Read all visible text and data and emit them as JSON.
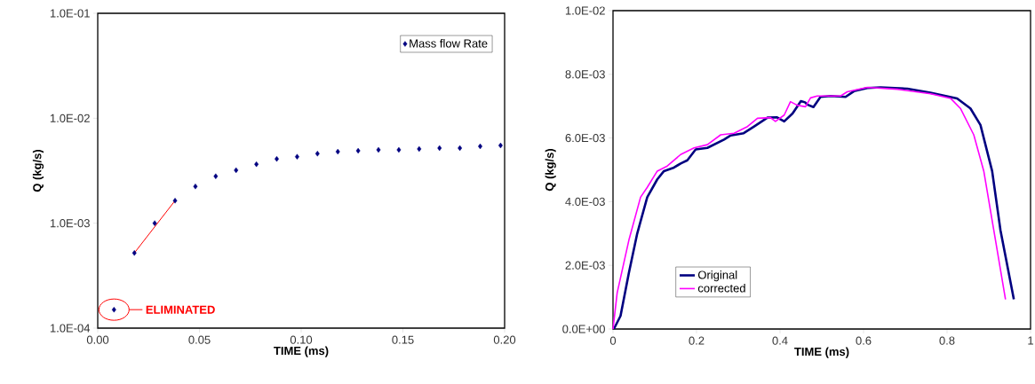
{
  "chart_data": [
    {
      "type": "scatter",
      "xlabel": "TIME (ms)",
      "ylabel": "Q (kg/s)",
      "log": "y",
      "marker": "diamond",
      "legend": "top right",
      "xlim": [
        0,
        0.2
      ],
      "ylim": [
        0.0001,
        0.1
      ],
      "xticks": [
        {
          "value": 0,
          "label": "0.00"
        },
        {
          "value": 0.05,
          "label": "0.05"
        },
        {
          "value": 0.1,
          "label": "0.10"
        },
        {
          "value": 0.15,
          "label": "0.15"
        },
        {
          "value": 0.2,
          "label": "0.20"
        }
      ],
      "yticks": [
        {
          "value": 0.0001,
          "label": "1.0E-04"
        },
        {
          "value": 0.001,
          "label": "1.0E-03"
        },
        {
          "value": 0.01,
          "label": "1.0E-02"
        },
        {
          "value": 0.1,
          "label": "1.0E-01"
        }
      ],
      "x": [
        0.008,
        0.018,
        0.028,
        0.038,
        0.048,
        0.058,
        0.068,
        0.078,
        0.088,
        0.098,
        0.108,
        0.118,
        0.128,
        0.138,
        0.148,
        0.158,
        0.168,
        0.178,
        0.188,
        0.198
      ],
      "series": [
        {
          "name": "Mass flow Rate",
          "color": "#000080",
          "values": [
            0.00015,
            0.00052,
            0.001,
            0.00164,
            0.00224,
            0.0028,
            0.0032,
            0.00365,
            0.0041,
            0.0043,
            0.0046,
            0.0048,
            0.0049,
            0.005,
            0.005,
            0.0051,
            0.0052,
            0.0052,
            0.0054,
            0.0055
          ]
        },
        {
          "type": "line",
          "marker": "none",
          "color": "#ff0000",
          "x": [
            0.018,
            0.038
          ],
          "values": [
            0.00052,
            0.00164
          ]
        }
      ],
      "annotations": [
        {
          "text": "ELIMINATED",
          "x": 0.008,
          "y": 0.00015
        }
      ]
    },
    {
      "type": "line",
      "xlabel": "TIME (ms)",
      "ylabel": "Q (kg/s)",
      "legend": "bottom left",
      "line_style": "solid",
      "xlim": [
        0,
        1
      ],
      "ylim": [
        0,
        0.01
      ],
      "xticks": [
        0,
        0.2,
        0.4,
        0.6,
        0.8,
        1
      ],
      "yticks": [
        {
          "value": 0,
          "label": "0.0E+00"
        },
        {
          "value": 0.002,
          "label": "2.0E-03"
        },
        {
          "value": 0.004,
          "label": "4.0E-03"
        },
        {
          "value": 0.006,
          "label": "6.0E-03"
        },
        {
          "value": 0.008,
          "label": "8.0E-03"
        },
        {
          "value": 0.01,
          "label": "1.0E-02"
        }
      ],
      "series": [
        {
          "name": "Original",
          "color": "#000080",
          "x": [
            0.002,
            0.018,
            0.038,
            0.058,
            0.082,
            0.106,
            0.122,
            0.146,
            0.162,
            0.178,
            0.198,
            0.226,
            0.266,
            0.282,
            0.313,
            0.338,
            0.37,
            0.393,
            0.41,
            0.43,
            0.45,
            0.46,
            0.465,
            0.48,
            0.497,
            0.521,
            0.557,
            0.577,
            0.609,
            0.641,
            0.705,
            0.76,
            0.824,
            0.856,
            0.88,
            0.908,
            0.928,
            0.96
          ],
          "values": [
            0,
            0.00041,
            0.00176,
            0.003,
            0.00414,
            0.0047,
            0.00496,
            0.00507,
            0.0052,
            0.0053,
            0.00564,
            0.00569,
            0.00595,
            0.00608,
            0.00615,
            0.00636,
            0.00664,
            0.00665,
            0.00652,
            0.00677,
            0.00716,
            0.00712,
            0.00705,
            0.00697,
            0.00729,
            0.00732,
            0.00729,
            0.00747,
            0.00757,
            0.00759,
            0.00755,
            0.00742,
            0.00724,
            0.00693,
            0.00641,
            0.00496,
            0.0031,
            0.00093
          ]
        },
        {
          "name": "corrected",
          "color": "#ff00ff",
          "x": [
            0,
            0.01,
            0.038,
            0.066,
            0.082,
            0.106,
            0.13,
            0.162,
            0.194,
            0.226,
            0.258,
            0.29,
            0.322,
            0.346,
            0.377,
            0.389,
            0.41,
            0.425,
            0.441,
            0.461,
            0.473,
            0.489,
            0.545,
            0.561,
            0.609,
            0.681,
            0.761,
            0.809,
            0.832,
            0.864,
            0.888,
            0.912,
            0.94
          ],
          "values": [
            0,
            0.00114,
            0.00279,
            0.00414,
            0.00445,
            0.00496,
            0.00512,
            0.00548,
            0.00569,
            0.00579,
            0.0061,
            0.00615,
            0.00636,
            0.00662,
            0.00664,
            0.00652,
            0.00672,
            0.00714,
            0.00703,
            0.00698,
            0.00726,
            0.00732,
            0.00732,
            0.00745,
            0.00759,
            0.00753,
            0.00739,
            0.00724,
            0.00693,
            0.0061,
            0.00496,
            0.0031,
            0.00093
          ]
        }
      ]
    }
  ]
}
